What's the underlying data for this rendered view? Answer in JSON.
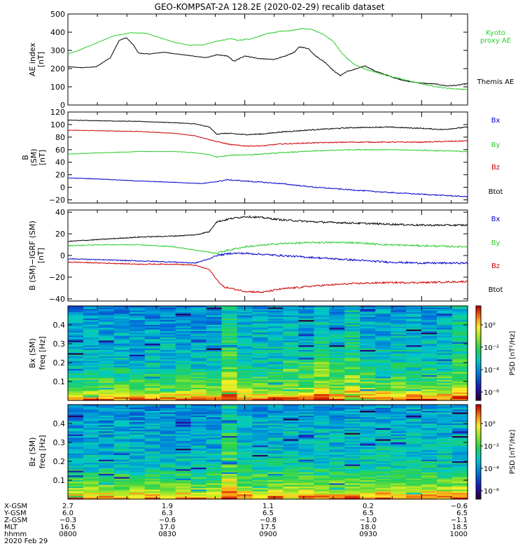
{
  "title": "GEO-KOMPSAT-2A 128.2E (2020-02-29) recalib dataset",
  "chart_data": [
    {
      "type": "line",
      "name": "ae",
      "ylabel": [
        "AE index",
        "[nT]"
      ],
      "ylim": [
        0,
        500
      ],
      "yticks": [
        "0",
        "100",
        "200",
        "300",
        "400",
        "500"
      ],
      "legend": [
        {
          "text": [
            "Kyoto",
            "proxy AE"
          ],
          "color": "#2ecc2e"
        },
        {
          "text": [
            "Themis AE"
          ],
          "color": "#000000"
        }
      ],
      "series": [
        {
          "name": "Themis AE",
          "color": "#000000",
          "points": [
            [
              0,
              210
            ],
            [
              0.04,
              205
            ],
            [
              0.08,
              210
            ],
            [
              0.12,
              260
            ],
            [
              0.145,
              355
            ],
            [
              0.165,
              370
            ],
            [
              0.185,
              330
            ],
            [
              0.2,
              285
            ],
            [
              0.23,
              280
            ],
            [
              0.27,
              290
            ],
            [
              0.31,
              280
            ],
            [
              0.35,
              270
            ],
            [
              0.39,
              260
            ],
            [
              0.42,
              275
            ],
            [
              0.45,
              270
            ],
            [
              0.47,
              240
            ],
            [
              0.5,
              270
            ],
            [
              0.54,
              255
            ],
            [
              0.58,
              250
            ],
            [
              0.61,
              265
            ],
            [
              0.64,
              290
            ],
            [
              0.655,
              320
            ],
            [
              0.68,
              310
            ],
            [
              0.7,
              270
            ],
            [
              0.73,
              230
            ],
            [
              0.75,
              190
            ],
            [
              0.77,
              162
            ],
            [
              0.79,
              185
            ],
            [
              0.81,
              195
            ],
            [
              0.84,
              215
            ],
            [
              0.87,
              185
            ],
            [
              0.9,
              165
            ],
            [
              0.93,
              145
            ],
            [
              0.96,
              130
            ],
            [
              1.0,
              120
            ],
            [
              1.04,
              115
            ],
            [
              1.07,
              105
            ],
            [
              1.1,
              108
            ],
            [
              1.13,
              118
            ]
          ]
        },
        {
          "name": "Kyoto proxy AE",
          "color": "#2ecc2e",
          "points": [
            [
              0,
              280
            ],
            [
              0.03,
              300
            ],
            [
              0.08,
              340
            ],
            [
              0.13,
              380
            ],
            [
              0.18,
              397
            ],
            [
              0.22,
              395
            ],
            [
              0.26,
              370
            ],
            [
              0.3,
              345
            ],
            [
              0.34,
              330
            ],
            [
              0.38,
              330
            ],
            [
              0.42,
              350
            ],
            [
              0.46,
              365
            ],
            [
              0.48,
              355
            ],
            [
              0.52,
              365
            ],
            [
              0.56,
              390
            ],
            [
              0.6,
              405
            ],
            [
              0.63,
              408
            ],
            [
              0.66,
              420
            ],
            [
              0.69,
              415
            ],
            [
              0.72,
              390
            ],
            [
              0.75,
              350
            ],
            [
              0.77,
              295
            ],
            [
              0.79,
              255
            ],
            [
              0.81,
              222
            ],
            [
              0.84,
              198
            ],
            [
              0.87,
              180
            ],
            [
              0.9,
              162
            ],
            [
              0.94,
              145
            ],
            [
              0.98,
              125
            ],
            [
              1.02,
              108
            ],
            [
              1.06,
              95
            ],
            [
              1.1,
              88
            ],
            [
              1.13,
              85
            ]
          ]
        }
      ]
    },
    {
      "type": "line",
      "name": "b",
      "ylabel": [
        "B",
        "(SM)",
        "[nT]"
      ],
      "ylim": [
        -25,
        120
      ],
      "yticks": [
        "−20",
        "0",
        "20",
        "40",
        "60",
        "80",
        "100",
        "120"
      ],
      "legend": [
        {
          "text": [
            "Bx"
          ],
          "color": "#0000cc"
        },
        {
          "text": [
            "By"
          ],
          "color": "#2ecc2e"
        },
        {
          "text": [
            "Bz"
          ],
          "color": "#cc0000"
        },
        {
          "text": [
            "Btot"
          ],
          "color": "#000000"
        }
      ],
      "series": [
        {
          "name": "Btot",
          "color": "#000000",
          "points": [
            [
              0,
              107
            ],
            [
              0.1,
              106
            ],
            [
              0.2,
              105
            ],
            [
              0.3,
              103
            ],
            [
              0.36,
              101
            ],
            [
              0.4,
              96
            ],
            [
              0.42,
              85
            ],
            [
              0.45,
              86
            ],
            [
              0.5,
              84
            ],
            [
              0.55,
              85
            ],
            [
              0.6,
              88
            ],
            [
              0.7,
              92
            ],
            [
              0.8,
              95
            ],
            [
              0.9,
              96
            ],
            [
              1.0,
              94
            ],
            [
              1.06,
              92
            ],
            [
              1.13,
              96
            ]
          ]
        },
        {
          "name": "Bz",
          "color": "#cc0000",
          "points": [
            [
              0,
              91
            ],
            [
              0.1,
              90
            ],
            [
              0.2,
              89
            ],
            [
              0.3,
              86
            ],
            [
              0.36,
              82
            ],
            [
              0.4,
              76
            ],
            [
              0.42,
              73
            ],
            [
              0.46,
              68
            ],
            [
              0.5,
              66
            ],
            [
              0.55,
              66
            ],
            [
              0.6,
              69
            ],
            [
              0.7,
              71
            ],
            [
              0.8,
              72
            ],
            [
              0.9,
              72
            ],
            [
              1.0,
              72
            ],
            [
              1.13,
              74
            ]
          ]
        },
        {
          "name": "By",
          "color": "#2ecc2e",
          "points": [
            [
              0,
              53
            ],
            [
              0.1,
              55
            ],
            [
              0.2,
              57
            ],
            [
              0.3,
              57
            ],
            [
              0.36,
              55
            ],
            [
              0.4,
              52
            ],
            [
              0.42,
              48
            ],
            [
              0.46,
              51
            ],
            [
              0.52,
              52
            ],
            [
              0.6,
              55
            ],
            [
              0.7,
              58
            ],
            [
              0.8,
              60
            ],
            [
              0.9,
              60
            ],
            [
              1.0,
              59
            ],
            [
              1.13,
              57
            ]
          ]
        },
        {
          "name": "Bx",
          "color": "#0000cc",
          "points": [
            [
              0,
              15
            ],
            [
              0.1,
              13
            ],
            [
              0.2,
              10
            ],
            [
              0.3,
              8
            ],
            [
              0.38,
              6
            ],
            [
              0.42,
              9
            ],
            [
              0.45,
              12
            ],
            [
              0.5,
              10
            ],
            [
              0.55,
              8
            ],
            [
              0.6,
              6
            ],
            [
              0.7,
              0
            ],
            [
              0.8,
              -4
            ],
            [
              0.9,
              -8
            ],
            [
              1.0,
              -11
            ],
            [
              1.13,
              -15
            ]
          ]
        }
      ]
    },
    {
      "type": "line",
      "name": "db",
      "ylabel": [
        "B (SM)−IGRF (SM)",
        "[nT]"
      ],
      "ylim": [
        -42,
        42
      ],
      "yticks": [
        "−40",
        "−20",
        "0",
        "20",
        "40"
      ],
      "legend": [
        {
          "text": [
            "Bx"
          ],
          "color": "#0000cc"
        },
        {
          "text": [
            "By"
          ],
          "color": "#2ecc2e"
        },
        {
          "text": [
            "Bz"
          ],
          "color": "#cc0000"
        },
        {
          "text": [
            "Btot"
          ],
          "color": "#000000"
        }
      ],
      "series": [
        {
          "name": "Btot",
          "color": "#000000",
          "points": [
            [
              0,
              13
            ],
            [
              0.1,
              15
            ],
            [
              0.2,
              17
            ],
            [
              0.3,
              18
            ],
            [
              0.36,
              19
            ],
            [
              0.4,
              22
            ],
            [
              0.42,
              31
            ],
            [
              0.46,
              34
            ],
            [
              0.5,
              36
            ],
            [
              0.55,
              35
            ],
            [
              0.6,
              33
            ],
            [
              0.7,
              31
            ],
            [
              0.8,
              30
            ],
            [
              0.9,
              29
            ],
            [
              1.0,
              28
            ],
            [
              1.13,
              28
            ]
          ]
        },
        {
          "name": "By",
          "color": "#2ecc2e",
          "points": [
            [
              0,
              9
            ],
            [
              0.1,
              10
            ],
            [
              0.2,
              10
            ],
            [
              0.3,
              8
            ],
            [
              0.36,
              5
            ],
            [
              0.4,
              3
            ],
            [
              0.42,
              2
            ],
            [
              0.44,
              4
            ],
            [
              0.5,
              8
            ],
            [
              0.6,
              11
            ],
            [
              0.7,
              12
            ],
            [
              0.8,
              12
            ],
            [
              0.9,
              10
            ],
            [
              1.0,
              9
            ],
            [
              1.13,
              8
            ]
          ]
        },
        {
          "name": "Bx",
          "color": "#0000cc",
          "points": [
            [
              0,
              -3
            ],
            [
              0.1,
              -4
            ],
            [
              0.2,
              -5
            ],
            [
              0.3,
              -6
            ],
            [
              0.36,
              -7
            ],
            [
              0.4,
              -3
            ],
            [
              0.42,
              0
            ],
            [
              0.46,
              2
            ],
            [
              0.5,
              2
            ],
            [
              0.55,
              1
            ],
            [
              0.6,
              0
            ],
            [
              0.7,
              -2
            ],
            [
              0.8,
              -4
            ],
            [
              0.9,
              -6
            ],
            [
              1.0,
              -7
            ],
            [
              1.13,
              -7
            ]
          ]
        },
        {
          "name": "Bz",
          "color": "#cc0000",
          "points": [
            [
              0,
              -6
            ],
            [
              0.1,
              -7
            ],
            [
              0.2,
              -8
            ],
            [
              0.3,
              -8
            ],
            [
              0.36,
              -9
            ],
            [
              0.4,
              -13
            ],
            [
              0.42,
              -22
            ],
            [
              0.44,
              -29
            ],
            [
              0.5,
              -33
            ],
            [
              0.55,
              -34
            ],
            [
              0.6,
              -31
            ],
            [
              0.7,
              -28
            ],
            [
              0.8,
              -26
            ],
            [
              0.9,
              -25
            ],
            [
              1.0,
              -25
            ],
            [
              1.13,
              -24
            ]
          ]
        }
      ]
    },
    {
      "type": "heatmap",
      "name": "bx_spec",
      "ylabel": [
        "Bx (SM)",
        "freq [Hz]"
      ],
      "ylim": [
        0,
        0.5
      ],
      "yticks": [
        "0.1",
        "0.2",
        "0.3",
        "0.4"
      ],
      "colorbar_label": "PSD [nT²/Hz]",
      "colorbar_ticks": [
        "10⁰",
        "10⁻²",
        "10⁻⁴",
        "10⁻⁶"
      ]
    },
    {
      "type": "heatmap",
      "name": "bz_spec",
      "ylabel": [
        "Bz (SM)",
        "freq [Hz]"
      ],
      "ylim": [
        0,
        0.5
      ],
      "yticks": [
        "0.1",
        "0.2",
        "0.3",
        "0.4"
      ],
      "colorbar_label": "PSD [nT²/Hz]",
      "colorbar_ticks": [
        "10⁰",
        "10⁻²",
        "10⁻⁴",
        "10⁻⁶"
      ]
    }
  ],
  "ephemeris": {
    "labels": [
      "X-GSM",
      "Y-GSM",
      "Z-GSM",
      "MLT",
      "hhmm",
      "2020 Feb 29"
    ],
    "columns": [
      [
        "2.7",
        "6.0",
        "−0.3",
        "16.5",
        "0800"
      ],
      [
        "1.9",
        "6.3",
        "−0.6",
        "17.0",
        "0830"
      ],
      [
        "1.1",
        "6.5",
        "−0.8",
        "17.5",
        "0900"
      ],
      [
        "0.2",
        "6.5",
        "−1.0",
        "18.0",
        "0930"
      ],
      [
        "−0.6",
        "6.5",
        "−1.1",
        "18.5",
        "1000"
      ]
    ]
  }
}
